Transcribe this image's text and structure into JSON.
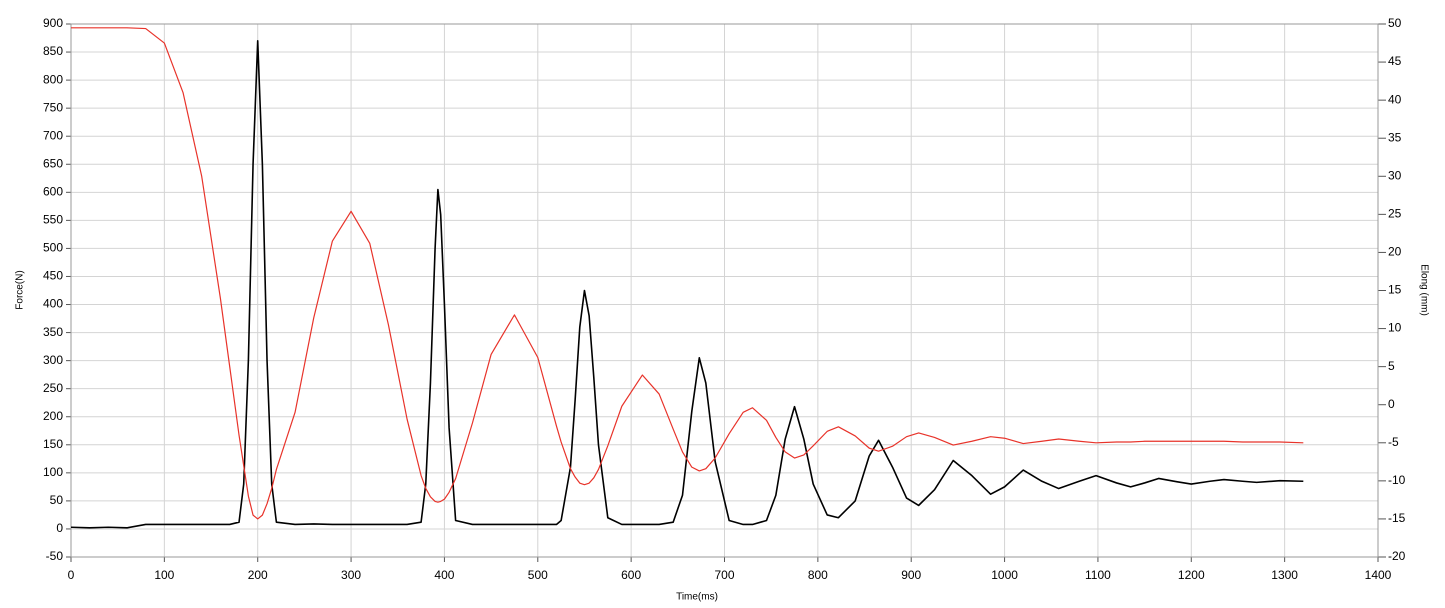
{
  "chart_data": {
    "type": "line",
    "xlabel": "Time(ms)",
    "ylabel": "Force(N)",
    "y2label": "Elong (mm)",
    "x": [
      0,
      20,
      40,
      60,
      80,
      100,
      120,
      140,
      160,
      170,
      180,
      185,
      190,
      195,
      200,
      205,
      210,
      215,
      220,
      240,
      260,
      280,
      300,
      320,
      340,
      360,
      375,
      380,
      385,
      390,
      393,
      396,
      400,
      405,
      412,
      430,
      450,
      475,
      500,
      520,
      525,
      535,
      540,
      545,
      550,
      555,
      560,
      565,
      575,
      590,
      612,
      630,
      645,
      655,
      665,
      673,
      680,
      690,
      705,
      720,
      730,
      745,
      755,
      765,
      775,
      785,
      795,
      810,
      822,
      840,
      855,
      865,
      880,
      895,
      908,
      925,
      945,
      965,
      985,
      1000,
      1020,
      1040,
      1058,
      1080,
      1098,
      1120,
      1135,
      1150,
      1165,
      1185,
      1200,
      1220,
      1235,
      1255,
      1270,
      1295,
      1320
    ],
    "series": [
      {
        "color": "#000000",
        "values": [
          3,
          2,
          3,
          2,
          8,
          8,
          8,
          8,
          8,
          8,
          12,
          80,
          300,
          650,
          870,
          650,
          300,
          80,
          12,
          8,
          9,
          8,
          8,
          8,
          8,
          8,
          12,
          80,
          260,
          500,
          605,
          560,
          400,
          180,
          15,
          8,
          8,
          8,
          8,
          8,
          15,
          110,
          230,
          360,
          425,
          380,
          270,
          150,
          20,
          8,
          8,
          8,
          12,
          60,
          210,
          305,
          260,
          120,
          15,
          8,
          8,
          15,
          60,
          160,
          218,
          160,
          80,
          25,
          20,
          50,
          130,
          158,
          110,
          55,
          42,
          70,
          122,
          95,
          62,
          75,
          105,
          85,
          72,
          85,
          95,
          82,
          75,
          82,
          90,
          84,
          80,
          85,
          88,
          85,
          83,
          86,
          85
        ]
      },
      {
        "color": "#e8332a",
        "axis": "y2",
        "values": [
          49.5,
          49.5,
          49.5,
          49.5,
          49.4,
          47.5,
          41,
          30,
          14,
          5,
          -4,
          -8,
          -12,
          -14.5,
          -15,
          -14.5,
          -13,
          -11,
          -8.5,
          -1.0,
          11.4,
          21.5,
          25.4,
          21.2,
          10.5,
          -1.9,
          -9.3,
          -11,
          -12.1,
          -12.7,
          -12.8,
          -12.7,
          -12.4,
          -11.5,
          -9.7,
          -2.4,
          6.6,
          11.8,
          6.2,
          -2.8,
          -4.9,
          -8.4,
          -9.5,
          -10.3,
          -10.5,
          -10.3,
          -9.6,
          -8.5,
          -5.4,
          -0.2,
          3.9,
          1.4,
          -3.2,
          -6.2,
          -8.2,
          -8.7,
          -8.4,
          -7.0,
          -3.8,
          -1.0,
          -0.4,
          -2.05,
          -4.3,
          -6.2,
          -7,
          -6.6,
          -5.4,
          -3.5,
          -2.9,
          -4.1,
          -5.7,
          -6.1,
          -5.45,
          -4.2,
          -3.7,
          -4.3,
          -5.3,
          -4.8,
          -4.2,
          -4.4,
          -5.1,
          -4.8,
          -4.5,
          -4.8,
          -5.0,
          -4.9,
          -4.9,
          -4.8,
          -4.8,
          -4.8,
          -4.8,
          -4.8,
          -4.8,
          -4.9,
          -4.9,
          -4.9,
          -5.0
        ]
      }
    ],
    "xlim": [
      0,
      1400
    ],
    "xticks": [
      0,
      100,
      200,
      300,
      400,
      500,
      600,
      700,
      800,
      900,
      1000,
      1100,
      1200,
      1300,
      1400
    ],
    "ylim": [
      -50,
      900
    ],
    "yticks": [
      900,
      850,
      800,
      750,
      700,
      650,
      600,
      550,
      500,
      450,
      400,
      350,
      300,
      250,
      200,
      150,
      100,
      50,
      0,
      -50
    ],
    "y2lim": [
      -20,
      50
    ],
    "y2ticks": [
      50,
      45,
      40,
      35,
      30,
      25,
      20,
      15,
      10,
      5,
      0,
      -5,
      -10,
      -15,
      -20
    ],
    "grid": true
  }
}
